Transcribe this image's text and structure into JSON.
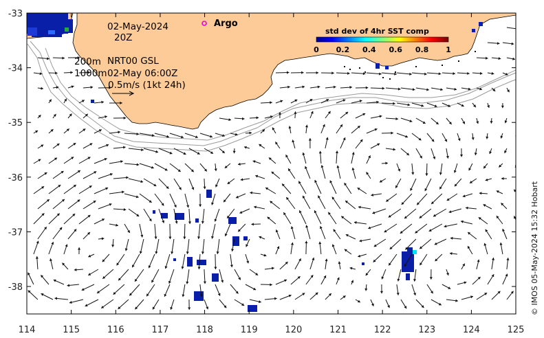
{
  "map": {
    "date_label": "02-May-2024",
    "hour_label": "20Z",
    "isobath_label": "200m",
    "product_label": "NRT00 GSL",
    "isobath2_label": "1000m",
    "vector_time_label": "02-May 06:00Z",
    "scale_label": "0.5m/s (1kt 24h)",
    "argo_label": "Argo",
    "credit": "© IMOS 05-May-2024 15:32 Hobart",
    "lon_ticks": [
      "114",
      "115",
      "116",
      "117",
      "118",
      "119",
      "120",
      "121",
      "122",
      "123",
      "124",
      "125"
    ],
    "lat_ticks": [
      "-33",
      "-34",
      "-35",
      "-36",
      "-37",
      "-38"
    ],
    "colorbar": {
      "title": "std dev of 4hr SST comp",
      "ticks": [
        "0",
        "0.2",
        "0.4",
        "0.6",
        "0.8",
        "1"
      ]
    },
    "colors": {
      "land": "#fdcb98",
      "ocean": "#ffffff",
      "sst_patch": "#0a1fa8",
      "vector": "#111111",
      "argo_marker": "#e600e6"
    }
  }
}
